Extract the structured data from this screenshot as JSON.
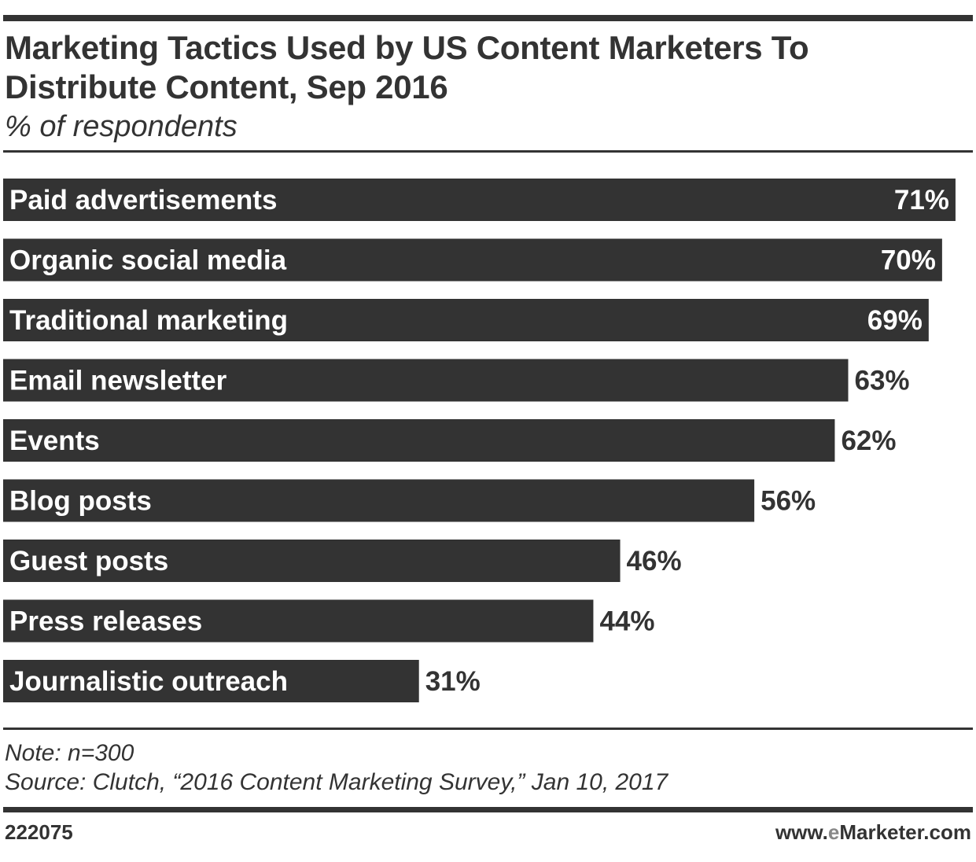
{
  "title": "Marketing Tactics Used by US Content Marketers To Distribute Content, Sep 2016",
  "subtitle": "% of respondents",
  "note": "Note: n=300",
  "source": "Source: Clutch, “2016 Content Marketing Survey,” Jan 10, 2017",
  "chart_id": "222075",
  "brand": {
    "prefix": "www.",
    "e": "e",
    "suffix": "Marketer.com"
  },
  "colors": {
    "bar": "#333333",
    "bar_label": "#ffffff",
    "text": "#333333",
    "brand_e": "#888888"
  },
  "chart_data": {
    "type": "bar",
    "orientation": "horizontal",
    "categories": [
      "Paid advertisements",
      "Organic social media",
      "Traditional marketing",
      "Email newsletter",
      "Events",
      "Blog posts",
      "Guest posts",
      "Press releases",
      "Journalistic outreach"
    ],
    "values": [
      71,
      70,
      69,
      63,
      62,
      56,
      46,
      44,
      31
    ],
    "value_labels": [
      "71%",
      "70%",
      "69%",
      "63%",
      "62%",
      "56%",
      "46%",
      "44%",
      "31%"
    ],
    "unit": "%",
    "xlim": [
      0,
      72
    ],
    "grid": false,
    "legend": "none"
  }
}
